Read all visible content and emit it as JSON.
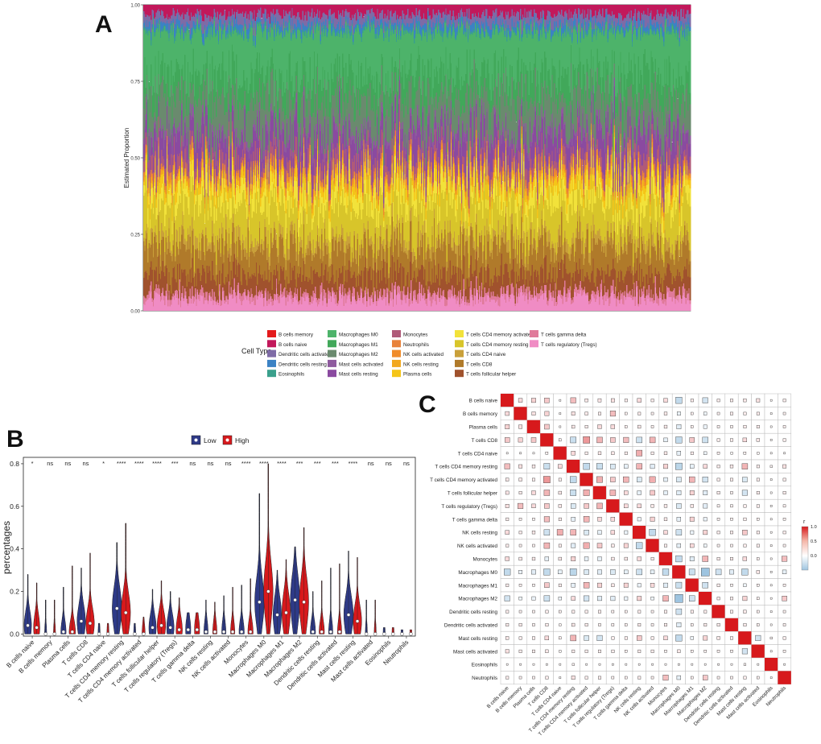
{
  "figure": {
    "panel_labels": [
      "A",
      "B",
      "C"
    ]
  },
  "chart_data": [
    {
      "id": "A",
      "type": "area",
      "description_kind": "stacked-bar",
      "ylabel": "Estimated Proportion",
      "yticks": [
        "0.00",
        "0.25",
        "0.50",
        "0.75",
        "1.00"
      ],
      "ylim": [
        0,
        1
      ],
      "legend_title": "Cell Type",
      "legend": [
        {
          "name": "B cells memory",
          "color": "#e41a1c"
        },
        {
          "name": "B cells naive",
          "color": "#c2185b"
        },
        {
          "name": "Dendritic cells activated",
          "color": "#7e6ba6"
        },
        {
          "name": "Dendritic cells resting",
          "color": "#3b82c4"
        },
        {
          "name": "Eosinophils",
          "color": "#3aa08c"
        },
        {
          "name": "Macrophages M0",
          "color": "#4db36a"
        },
        {
          "name": "Macrophages M1",
          "color": "#41a85a"
        },
        {
          "name": "Macrophages M2",
          "color": "#6a8a6e"
        },
        {
          "name": "Mast cells activated",
          "color": "#8e5a9e"
        },
        {
          "name": "Mast cells resting",
          "color": "#8a4aa0"
        },
        {
          "name": "Monocytes",
          "color": "#b05a78"
        },
        {
          "name": "Neutrophils",
          "color": "#e8823a"
        },
        {
          "name": "NK cells activated",
          "color": "#f08c2a"
        },
        {
          "name": "NK cells resting",
          "color": "#f2a81e"
        },
        {
          "name": "Plasma cells",
          "color": "#f5c518"
        },
        {
          "name": "T cells CD4 memory activated",
          "color": "#f2e23a"
        },
        {
          "name": "T cells CD4 memory resting",
          "color": "#d8c52a"
        },
        {
          "name": "T cells CD4 naive",
          "color": "#c9a03a"
        },
        {
          "name": "T cells CD8",
          "color": "#b07a2a"
        },
        {
          "name": "T cells follicular helper",
          "color": "#a0522d"
        },
        {
          "name": "T cells gamma delta",
          "color": "#e07a9a"
        },
        {
          "name": "T cells regulatory (Tregs)",
          "color": "#f08cc4"
        }
      ],
      "stack_order_bottom_to_top": [
        {
          "name": "T cells regulatory (Tregs)",
          "mean": 0.04
        },
        {
          "name": "T cells gamma delta",
          "mean": 0.02
        },
        {
          "name": "T cells follicular helper",
          "mean": 0.06
        },
        {
          "name": "T cells CD8",
          "mean": 0.09
        },
        {
          "name": "T cells CD4 naive",
          "mean": 0.03
        },
        {
          "name": "T cells CD4 memory resting",
          "mean": 0.11
        },
        {
          "name": "T cells CD4 memory activated",
          "mean": 0.05
        },
        {
          "name": "Plasma cells",
          "mean": 0.03
        },
        {
          "name": "NK cells resting",
          "mean": 0.01
        },
        {
          "name": "NK cells activated",
          "mean": 0.01
        },
        {
          "name": "Neutrophils",
          "mean": 0.01
        },
        {
          "name": "Monocytes",
          "mean": 0.04
        },
        {
          "name": "Mast cells resting",
          "mean": 0.07
        },
        {
          "name": "Mast cells activated",
          "mean": 0.02
        },
        {
          "name": "Macrophages M2",
          "mean": 0.1
        },
        {
          "name": "Macrophages M1",
          "mean": 0.08
        },
        {
          "name": "Macrophages M0",
          "mean": 0.14
        },
        {
          "name": "Eosinophils",
          "mean": 0.01
        },
        {
          "name": "Dendritic cells resting",
          "mean": 0.02
        },
        {
          "name": "Dendritic cells activated",
          "mean": 0.03
        },
        {
          "name": "B cells naive",
          "mean": 0.03
        },
        {
          "name": "B cells memory",
          "mean": 0.0
        }
      ],
      "n_samples": 520
    },
    {
      "id": "B",
      "type": "violin",
      "ylabel": "percentages",
      "ylim": [
        -0.01,
        0.83
      ],
      "yticks": [
        0.0,
        0.2,
        0.4,
        0.6,
        0.8
      ],
      "ytick_labels": [
        "0.0",
        "0.2",
        "0.4",
        "0.6",
        "0.8"
      ],
      "legend": [
        {
          "name": "Low",
          "color": "#2e3a87"
        },
        {
          "name": "High",
          "color": "#d7191c"
        }
      ],
      "categories": [
        "B cells naive",
        "B cells memory",
        "Plasma cells",
        "T cells CD8",
        "T cells CD4 naive",
        "T cells CD4 memory resting",
        "T cells CD4 memory activated",
        "T cells follicular helper",
        "T cells regulatory (Tregs)",
        "T cells gamma delta",
        "NK cells resting",
        "NK cells activated",
        "Monocytes",
        "Macrophages M0",
        "Macrophages M1",
        "Macrophages M2",
        "Dendritic cells resting",
        "Dendritic cells activated",
        "Mast cells resting",
        "Mast cells activated",
        "Eosinophils",
        "Neutrophils"
      ],
      "significance": [
        "*",
        "ns",
        "ns",
        "ns",
        "*",
        "****",
        "****",
        "****",
        "***",
        "ns",
        "ns",
        "ns",
        "****",
        "****",
        "****",
        "***",
        "***",
        "***",
        "****",
        "ns",
        "ns",
        "ns"
      ],
      "series": [
        {
          "name": "Low",
          "median": [
            0.04,
            0.0,
            0.01,
            0.06,
            0.0,
            0.12,
            0.0,
            0.03,
            0.03,
            0.02,
            0.01,
            0.01,
            0.01,
            0.15,
            0.09,
            0.16,
            0.01,
            0.01,
            0.09,
            0.0,
            0.0,
            0.0
          ],
          "max": [
            0.28,
            0.16,
            0.22,
            0.31,
            0.05,
            0.43,
            0.05,
            0.21,
            0.2,
            0.1,
            0.16,
            0.18,
            0.23,
            0.66,
            0.3,
            0.41,
            0.2,
            0.31,
            0.39,
            0.16,
            0.03,
            0.02
          ],
          "width": [
            0.7,
            0.2,
            0.5,
            0.8,
            0.2,
            0.9,
            0.2,
            0.7,
            0.7,
            0.5,
            0.4,
            0.4,
            0.5,
            0.9,
            0.8,
            0.9,
            0.5,
            0.4,
            0.9,
            0.2,
            0.2,
            0.2
          ]
        },
        {
          "name": "High",
          "median": [
            0.03,
            0.0,
            0.01,
            0.05,
            0.0,
            0.1,
            0.0,
            0.04,
            0.02,
            0.02,
            0.01,
            0.01,
            0.01,
            0.2,
            0.1,
            0.15,
            0.01,
            0.01,
            0.06,
            0.0,
            0.0,
            0.0
          ],
          "max": [
            0.24,
            0.16,
            0.32,
            0.38,
            0.05,
            0.52,
            0.08,
            0.25,
            0.17,
            0.1,
            0.15,
            0.22,
            0.26,
            0.8,
            0.35,
            0.5,
            0.25,
            0.33,
            0.36,
            0.16,
            0.03,
            0.02
          ],
          "width": [
            0.6,
            0.2,
            0.6,
            0.8,
            0.2,
            0.9,
            0.3,
            0.8,
            0.6,
            0.5,
            0.4,
            0.4,
            0.5,
            0.9,
            0.8,
            0.9,
            0.5,
            0.4,
            0.8,
            0.2,
            0.2,
            0.2
          ]
        }
      ]
    },
    {
      "id": "C",
      "type": "heatmap",
      "description_kind": "correlation-matrix",
      "labels": [
        "B cells naive",
        "B cells memory",
        "Plasma cells",
        "T cells CD8",
        "T cells CD4 naive",
        "T cells CD4 memory resting",
        "T cells CD4 memory activated",
        "T cells follicular helper",
        "T cells regulatory (Tregs)",
        "T cells gamma delta",
        "NK cells resting",
        "NK cells activated",
        "Monocytes",
        "Macrophages M0",
        "Macrophages M1",
        "Macrophages M2",
        "Dendritic cells resting",
        "Dendritic cells activated",
        "Mast cells resting",
        "Mast cells activated",
        "Eosinophils",
        "Neutrophils"
      ],
      "colorbar_title": "r",
      "colorbar_ticks": [
        "1.0",
        "0.5",
        "0.0"
      ],
      "colorbar_range": [
        -0.5,
        1.0
      ],
      "colors": {
        "positive": "#d7191c",
        "negative": "#9ec4e0",
        "neutral": "#ffffff"
      },
      "matrix": [
        [
          1.0,
          0.1,
          0.12,
          0.15,
          0.02,
          0.18,
          0.06,
          0.07,
          0.08,
          0.05,
          0.1,
          0.05,
          0.1,
          -0.25,
          0.05,
          -0.18,
          0.05,
          0.05,
          0.06,
          0.08,
          0.02,
          0.05
        ],
        [
          0.1,
          1.0,
          0.08,
          0.12,
          0.02,
          0.08,
          0.06,
          0.05,
          0.18,
          0.04,
          0.05,
          0.04,
          0.06,
          -0.08,
          0.04,
          -0.06,
          0.04,
          0.05,
          0.05,
          0.05,
          0.02,
          0.04
        ],
        [
          0.12,
          0.08,
          1.0,
          0.15,
          0.02,
          0.06,
          0.05,
          0.1,
          0.1,
          0.04,
          0.06,
          0.04,
          0.06,
          -0.12,
          0.04,
          -0.08,
          0.04,
          0.04,
          0.05,
          0.05,
          0.02,
          0.04
        ],
        [
          0.15,
          0.12,
          0.15,
          1.0,
          0.04,
          -0.22,
          0.28,
          0.2,
          0.15,
          0.18,
          -0.2,
          0.2,
          -0.1,
          -0.25,
          0.15,
          -0.2,
          0.05,
          0.05,
          0.1,
          0.06,
          0.02,
          0.05
        ],
        [
          0.02,
          0.02,
          0.02,
          0.04,
          1.0,
          0.1,
          0.05,
          0.06,
          0.06,
          0.05,
          0.22,
          0.05,
          0.06,
          -0.1,
          0.05,
          -0.06,
          0.04,
          0.03,
          0.04,
          0.03,
          0.02,
          0.02
        ],
        [
          0.18,
          0.08,
          0.06,
          -0.22,
          0.1,
          1.0,
          -0.25,
          -0.22,
          -0.15,
          -0.1,
          0.2,
          -0.12,
          0.12,
          -0.28,
          -0.1,
          0.1,
          0.05,
          0.06,
          0.2,
          0.05,
          0.03,
          0.08
        ],
        [
          0.06,
          0.06,
          0.05,
          0.28,
          0.05,
          -0.25,
          1.0,
          0.22,
          0.15,
          0.2,
          -0.15,
          0.22,
          -0.1,
          -0.15,
          0.2,
          -0.18,
          0.05,
          0.05,
          -0.15,
          0.05,
          0.02,
          0.05
        ],
        [
          0.07,
          0.05,
          0.1,
          0.2,
          0.06,
          -0.22,
          0.22,
          1.0,
          0.2,
          0.1,
          -0.1,
          0.15,
          -0.1,
          -0.12,
          0.12,
          -0.12,
          0.05,
          0.04,
          -0.18,
          0.05,
          0.02,
          0.05
        ],
        [
          0.08,
          0.18,
          0.1,
          0.15,
          0.06,
          -0.15,
          0.15,
          0.2,
          1.0,
          0.1,
          0.1,
          0.06,
          0.06,
          -0.15,
          0.06,
          -0.12,
          0.04,
          0.04,
          0.05,
          0.05,
          0.02,
          0.04
        ],
        [
          0.05,
          0.04,
          0.04,
          0.18,
          0.05,
          -0.1,
          0.2,
          0.1,
          0.1,
          1.0,
          -0.08,
          0.12,
          0.06,
          -0.1,
          0.12,
          -0.08,
          0.04,
          0.04,
          0.05,
          0.04,
          0.02,
          0.04
        ],
        [
          0.1,
          0.05,
          0.06,
          -0.2,
          0.22,
          0.2,
          -0.15,
          -0.1,
          0.1,
          -0.08,
          1.0,
          -0.25,
          0.1,
          -0.2,
          -0.08,
          0.12,
          0.05,
          0.05,
          0.15,
          0.05,
          0.02,
          0.05
        ],
        [
          0.05,
          0.04,
          0.04,
          0.2,
          0.05,
          -0.12,
          0.22,
          0.15,
          0.06,
          0.12,
          -0.25,
          1.0,
          0.05,
          -0.1,
          0.1,
          -0.06,
          0.04,
          0.04,
          0.05,
          0.05,
          0.02,
          0.04
        ],
        [
          0.1,
          0.06,
          0.06,
          -0.1,
          0.06,
          0.12,
          -0.1,
          -0.1,
          0.06,
          0.06,
          0.1,
          0.05,
          1.0,
          -0.25,
          -0.12,
          0.2,
          0.05,
          0.05,
          0.1,
          0.04,
          0.02,
          0.18
        ],
        [
          -0.25,
          -0.08,
          -0.12,
          -0.25,
          -0.1,
          -0.28,
          -0.15,
          -0.12,
          -0.15,
          -0.1,
          -0.2,
          -0.1,
          -0.25,
          1.0,
          -0.22,
          -0.4,
          -0.2,
          -0.12,
          -0.25,
          0.06,
          0.02,
          -0.1
        ],
        [
          0.05,
          0.04,
          0.04,
          0.15,
          0.05,
          -0.1,
          0.2,
          0.12,
          0.06,
          0.12,
          -0.08,
          0.1,
          -0.12,
          -0.22,
          1.0,
          -0.2,
          0.05,
          0.04,
          -0.06,
          0.04,
          0.02,
          0.04
        ],
        [
          -0.18,
          -0.06,
          -0.08,
          -0.2,
          -0.06,
          0.1,
          -0.18,
          -0.12,
          -0.12,
          -0.08,
          0.12,
          -0.06,
          0.2,
          -0.4,
          -0.2,
          1.0,
          0.05,
          0.05,
          0.12,
          0.04,
          0.02,
          0.15
        ],
        [
          0.05,
          0.04,
          0.04,
          0.05,
          0.04,
          0.05,
          0.05,
          0.05,
          0.04,
          0.04,
          0.05,
          0.04,
          0.05,
          -0.2,
          0.05,
          0.05,
          1.0,
          0.05,
          0.06,
          0.04,
          0.02,
          0.04
        ],
        [
          0.05,
          0.05,
          0.04,
          0.05,
          0.03,
          0.06,
          0.05,
          0.04,
          0.04,
          0.04,
          0.05,
          0.04,
          0.05,
          -0.12,
          0.04,
          0.05,
          0.05,
          1.0,
          0.05,
          0.04,
          0.02,
          0.04
        ],
        [
          0.06,
          0.05,
          0.05,
          0.1,
          0.04,
          0.2,
          -0.15,
          -0.18,
          0.05,
          0.05,
          0.15,
          0.05,
          0.1,
          -0.25,
          -0.06,
          0.12,
          0.06,
          0.05,
          1.0,
          -0.18,
          0.03,
          0.05
        ],
        [
          0.08,
          0.05,
          0.05,
          0.06,
          0.03,
          0.05,
          0.05,
          0.05,
          0.05,
          0.04,
          0.05,
          0.05,
          0.04,
          0.06,
          0.04,
          0.04,
          0.04,
          0.04,
          -0.18,
          1.0,
          0.02,
          0.04
        ],
        [
          0.02,
          0.02,
          0.02,
          0.02,
          0.02,
          0.03,
          0.02,
          0.02,
          0.02,
          0.02,
          0.02,
          0.02,
          0.02,
          0.02,
          0.02,
          0.02,
          0.02,
          0.02,
          0.03,
          0.02,
          1.0,
          0.02
        ],
        [
          0.05,
          0.04,
          0.04,
          0.05,
          0.02,
          0.08,
          0.05,
          0.05,
          0.04,
          0.04,
          0.05,
          0.04,
          0.18,
          -0.1,
          0.04,
          0.15,
          0.04,
          0.04,
          0.05,
          0.04,
          0.02,
          1.0
        ]
      ]
    }
  ]
}
